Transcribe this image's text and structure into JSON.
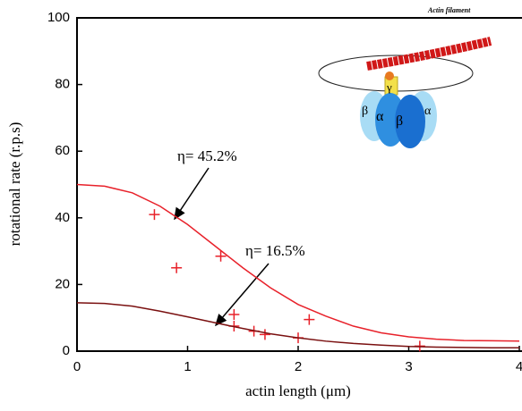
{
  "chart_data": {
    "type": "scatter",
    "xlabel": "actin length (μm)",
    "ylabel": "rotational rate (r.p.s)",
    "xlim": [
      0,
      4
    ],
    "xticks": [
      0,
      1,
      2,
      3,
      4
    ],
    "ylim": [
      0,
      100
    ],
    "yticks": [
      0,
      20,
      40,
      60,
      80,
      100
    ],
    "series": [
      {
        "mode": "markers",
        "color": "#e8212a",
        "x": [
          0.7,
          0.9,
          1.3,
          1.42,
          1.42,
          1.6,
          1.7,
          2.0,
          2.1,
          3.1
        ],
        "values": [
          41,
          25,
          28.5,
          11,
          7.5,
          6,
          5,
          4,
          9.5,
          1.5
        ]
      },
      {
        "mode": "lines",
        "color": "#e8212a",
        "x": [
          0,
          0.25,
          0.5,
          0.75,
          1,
          1.25,
          1.5,
          1.75,
          2,
          2.25,
          2.5,
          2.75,
          3,
          3.25,
          3.5,
          3.75,
          4
        ],
        "values": [
          50,
          49.5,
          47.5,
          43.5,
          38,
          31.5,
          25,
          19,
          14,
          10.5,
          7.5,
          5.5,
          4.3,
          3.6,
          3.2,
          3.1,
          3
        ]
      },
      {
        "mode": "lines",
        "color": "#7a1010",
        "x": [
          0,
          0.25,
          0.5,
          0.75,
          1,
          1.25,
          1.5,
          1.75,
          2,
          2.25,
          2.5,
          2.75,
          3,
          3.25,
          3.5,
          3.75,
          4
        ],
        "values": [
          14.5,
          14.3,
          13.5,
          12,
          10.3,
          8.5,
          6.8,
          5.2,
          4,
          3,
          2.3,
          1.8,
          1.4,
          1.2,
          1.1,
          1,
          1
        ]
      }
    ],
    "annotations": [
      "η= 45.2%",
      "η= 16.5%"
    ],
    "inset_labels": [
      "Actin filament",
      "γ",
      "β",
      "α",
      "β",
      "α"
    ]
  }
}
